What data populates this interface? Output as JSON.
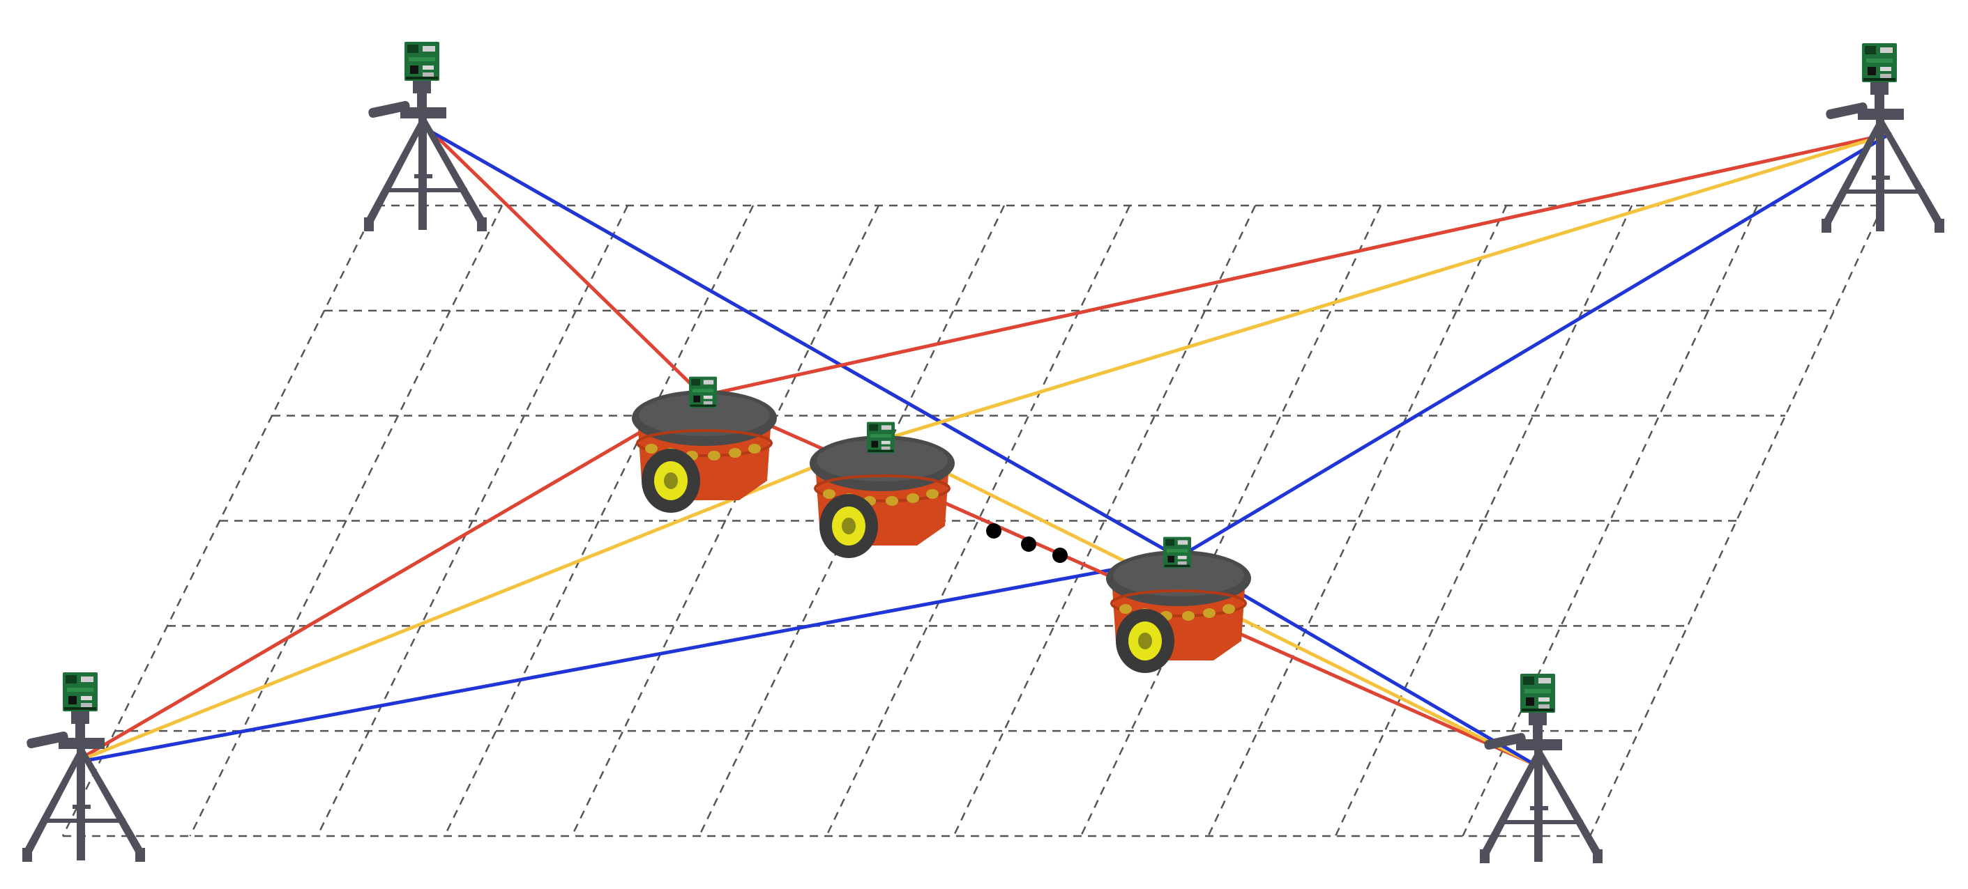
{
  "colors": {
    "background": "#ffffff",
    "grid": "#555555",
    "link_red": "#dd4433",
    "link_yellow": "#f4c23c",
    "link_blue": "#1f35d8",
    "robot_body": "#d2471c",
    "robot_top": "#4a4a4a",
    "robot_bumper": "#c9a227",
    "wheel_tire": "#3a3a3a",
    "wheel_hub": "#e6e31a",
    "tripod": "#50505c",
    "board": "#1e6f3a",
    "trajectory_dots": "#000000"
  },
  "anchors": [
    {
      "name": "anchor-top-left"
    },
    {
      "name": "anchor-top-right"
    },
    {
      "name": "anchor-bottom-left"
    },
    {
      "name": "anchor-bottom-right"
    }
  ],
  "robots": [
    {
      "name": "robot-1"
    },
    {
      "name": "robot-2"
    },
    {
      "name": "robot-3"
    }
  ],
  "links": [
    {
      "from": "anchor-top-left",
      "to": "robot-1",
      "color": "red"
    },
    {
      "from": "anchor-top-left",
      "to": "robot-3",
      "color": "yellow"
    },
    {
      "from": "anchor-top-left",
      "to": "robot-3",
      "color": "blue"
    },
    {
      "from": "anchor-top-right",
      "to": "robot-1",
      "color": "red"
    },
    {
      "from": "anchor-top-right",
      "to": "robot-2",
      "color": "yellow"
    },
    {
      "from": "anchor-top-right",
      "to": "robot-3",
      "color": "blue"
    },
    {
      "from": "anchor-bottom-left",
      "to": "robot-1",
      "color": "red"
    },
    {
      "from": "anchor-bottom-left",
      "to": "robot-2",
      "color": "yellow"
    },
    {
      "from": "anchor-bottom-left",
      "to": "robot-3",
      "color": "blue"
    },
    {
      "from": "anchor-bottom-right",
      "to": "robot-1",
      "color": "red"
    },
    {
      "from": "anchor-bottom-right",
      "to": "robot-2",
      "color": "yellow"
    },
    {
      "from": "anchor-bottom-right",
      "to": "robot-3",
      "color": "blue"
    }
  ]
}
